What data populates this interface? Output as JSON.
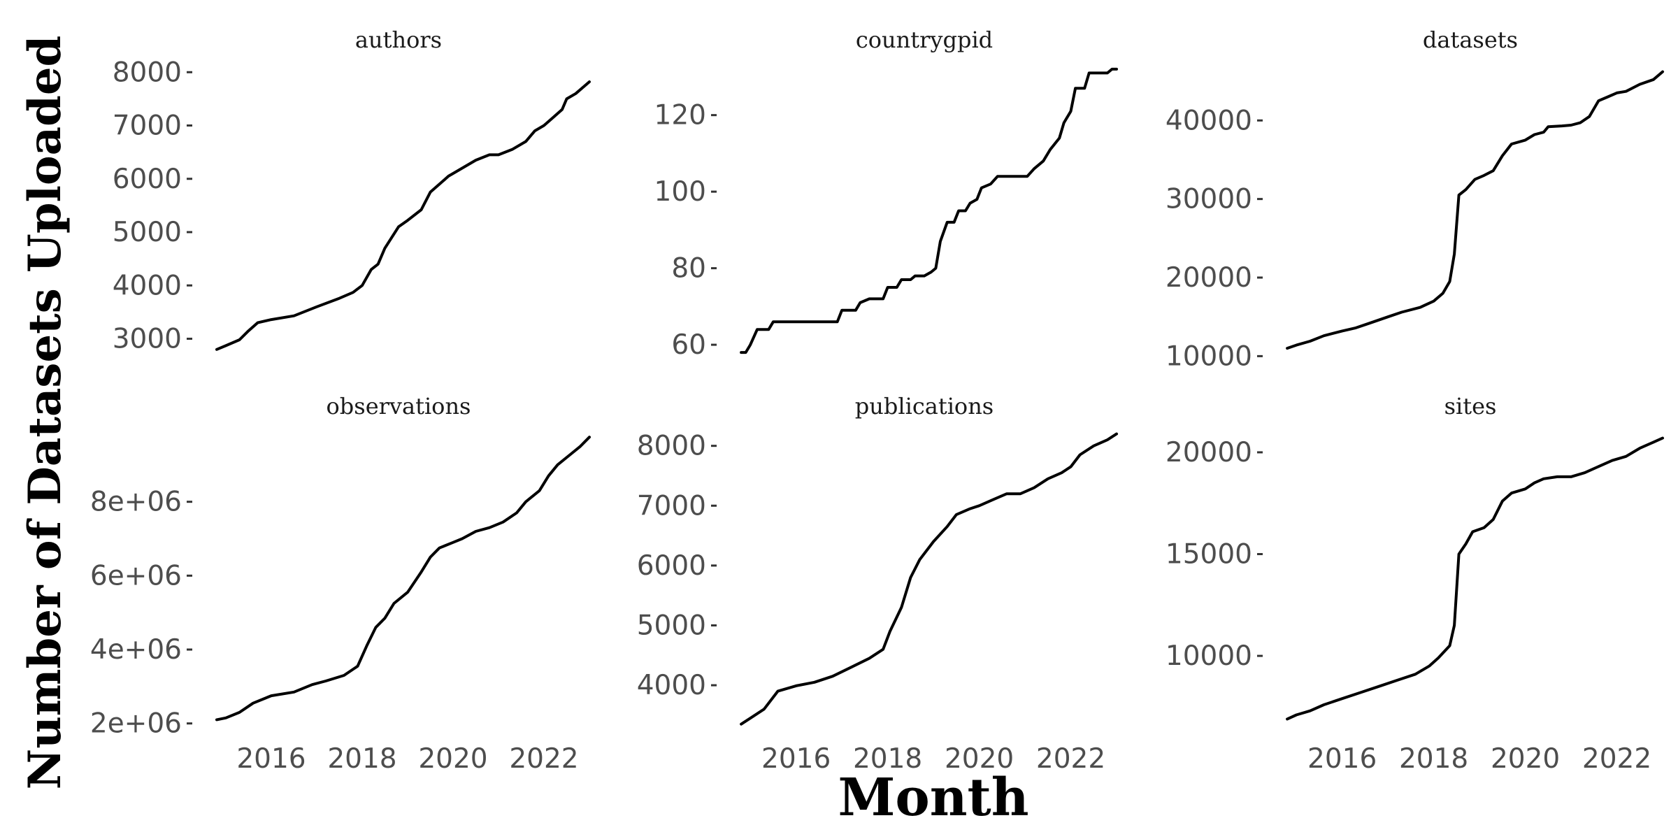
{
  "chart_data": {
    "type": "line",
    "xlabel": "Month",
    "ylabel": "Number of Datasets Uploaded",
    "grid": false,
    "legend": "none",
    "line_color": "#000000",
    "x_ticks": [
      2016,
      2018,
      2020,
      2022
    ],
    "xlim": [
      2014.6,
      2023.0
    ],
    "facets": [
      {
        "id": "authors",
        "title": "authors",
        "y_ticks": [
          3000,
          4000,
          5000,
          6000,
          7000,
          8000
        ],
        "y_tick_labels": [
          "3000",
          "4000",
          "5000",
          "6000",
          "7000",
          "8000"
        ],
        "ylim": [
          2600,
          8200
        ],
        "points": [
          [
            2014.8,
            2800
          ],
          [
            2015.0,
            2870
          ],
          [
            2015.3,
            2980
          ],
          [
            2015.5,
            3150
          ],
          [
            2015.7,
            3300
          ],
          [
            2016.0,
            3360
          ],
          [
            2016.5,
            3430
          ],
          [
            2017.0,
            3600
          ],
          [
            2017.5,
            3760
          ],
          [
            2017.8,
            3870
          ],
          [
            2018.0,
            4000
          ],
          [
            2018.2,
            4300
          ],
          [
            2018.35,
            4400
          ],
          [
            2018.5,
            4700
          ],
          [
            2018.8,
            5100
          ],
          [
            2019.0,
            5220
          ],
          [
            2019.3,
            5420
          ],
          [
            2019.5,
            5750
          ],
          [
            2019.7,
            5900
          ],
          [
            2019.9,
            6050
          ],
          [
            2020.0,
            6100
          ],
          [
            2020.5,
            6350
          ],
          [
            2020.8,
            6450
          ],
          [
            2021.0,
            6450
          ],
          [
            2021.3,
            6550
          ],
          [
            2021.6,
            6700
          ],
          [
            2021.8,
            6900
          ],
          [
            2022.0,
            7000
          ],
          [
            2022.2,
            7150
          ],
          [
            2022.4,
            7300
          ],
          [
            2022.5,
            7500
          ],
          [
            2022.7,
            7600
          ],
          [
            2023.0,
            7820
          ]
        ]
      },
      {
        "id": "countrygpid",
        "title": "countrygpid",
        "y_ticks": [
          60,
          80,
          100,
          120
        ],
        "y_tick_labels": [
          "60",
          "80",
          "100",
          "120"
        ],
        "ylim": [
          56,
          134
        ],
        "points": [
          [
            2014.8,
            58
          ],
          [
            2014.9,
            58
          ],
          [
            2015.0,
            60
          ],
          [
            2015.15,
            64
          ],
          [
            2015.4,
            64
          ],
          [
            2015.5,
            66
          ],
          [
            2016.5,
            66
          ],
          [
            2016.9,
            66
          ],
          [
            2017.0,
            69
          ],
          [
            2017.3,
            69
          ],
          [
            2017.4,
            71
          ],
          [
            2017.6,
            72
          ],
          [
            2017.9,
            72
          ],
          [
            2018.0,
            75
          ],
          [
            2018.2,
            75
          ],
          [
            2018.3,
            77
          ],
          [
            2018.5,
            77
          ],
          [
            2018.6,
            78
          ],
          [
            2018.8,
            78
          ],
          [
            2018.95,
            79
          ],
          [
            2019.05,
            80
          ],
          [
            2019.15,
            87
          ],
          [
            2019.3,
            92
          ],
          [
            2019.45,
            92
          ],
          [
            2019.55,
            95
          ],
          [
            2019.7,
            95
          ],
          [
            2019.8,
            97
          ],
          [
            2019.95,
            98
          ],
          [
            2020.05,
            101
          ],
          [
            2020.25,
            102
          ],
          [
            2020.4,
            104
          ],
          [
            2020.7,
            104
          ],
          [
            2020.9,
            104
          ],
          [
            2021.05,
            104
          ],
          [
            2021.2,
            106
          ],
          [
            2021.4,
            108
          ],
          [
            2021.55,
            111
          ],
          [
            2021.75,
            114
          ],
          [
            2021.85,
            118
          ],
          [
            2022.0,
            121
          ],
          [
            2022.1,
            127
          ],
          [
            2022.3,
            127
          ],
          [
            2022.4,
            131
          ],
          [
            2022.6,
            131
          ],
          [
            2022.8,
            131
          ],
          [
            2022.9,
            132
          ],
          [
            2023.0,
            132
          ]
        ]
      },
      {
        "id": "datasets",
        "title": "datasets",
        "y_ticks": [
          10000,
          20000,
          30000,
          40000
        ],
        "y_tick_labels": [
          "10000",
          "20000",
          "30000",
          "40000"
        ],
        "ylim": [
          9500,
          47500
        ],
        "points": [
          [
            2014.8,
            11000
          ],
          [
            2015.0,
            11400
          ],
          [
            2015.3,
            11900
          ],
          [
            2015.6,
            12600
          ],
          [
            2016.0,
            13200
          ],
          [
            2016.3,
            13600
          ],
          [
            2016.6,
            14200
          ],
          [
            2017.0,
            15000
          ],
          [
            2017.3,
            15600
          ],
          [
            2017.7,
            16200
          ],
          [
            2018.0,
            17000
          ],
          [
            2018.2,
            18000
          ],
          [
            2018.35,
            19500
          ],
          [
            2018.45,
            23000
          ],
          [
            2018.55,
            30500
          ],
          [
            2018.7,
            31200
          ],
          [
            2018.9,
            32500
          ],
          [
            2019.1,
            33000
          ],
          [
            2019.3,
            33600
          ],
          [
            2019.5,
            35500
          ],
          [
            2019.7,
            37000
          ],
          [
            2020.0,
            37500
          ],
          [
            2020.2,
            38200
          ],
          [
            2020.4,
            38500
          ],
          [
            2020.5,
            39200
          ],
          [
            2020.8,
            39300
          ],
          [
            2021.0,
            39400
          ],
          [
            2021.2,
            39700
          ],
          [
            2021.4,
            40500
          ],
          [
            2021.6,
            42500
          ],
          [
            2021.8,
            43000
          ],
          [
            2022.0,
            43500
          ],
          [
            2022.2,
            43700
          ],
          [
            2022.5,
            44600
          ],
          [
            2022.8,
            45200
          ],
          [
            2023.0,
            46200
          ]
        ]
      },
      {
        "id": "observations",
        "title": "observations",
        "y_ticks": [
          2000000,
          4000000,
          6000000,
          8000000
        ],
        "y_tick_labels": [
          "2e+06",
          "4e+06",
          "6e+06",
          "8e+06"
        ],
        "ylim": [
          1900000,
          10000000
        ],
        "points": [
          [
            2014.8,
            2100000
          ],
          [
            2015.0,
            2150000
          ],
          [
            2015.3,
            2300000
          ],
          [
            2015.6,
            2550000
          ],
          [
            2016.0,
            2750000
          ],
          [
            2016.5,
            2850000
          ],
          [
            2016.9,
            3050000
          ],
          [
            2017.2,
            3150000
          ],
          [
            2017.6,
            3300000
          ],
          [
            2017.9,
            3550000
          ],
          [
            2018.1,
            4100000
          ],
          [
            2018.3,
            4600000
          ],
          [
            2018.5,
            4850000
          ],
          [
            2018.7,
            5250000
          ],
          [
            2019.0,
            5550000
          ],
          [
            2019.3,
            6100000
          ],
          [
            2019.5,
            6500000
          ],
          [
            2019.7,
            6750000
          ],
          [
            2020.0,
            6900000
          ],
          [
            2020.2,
            7000000
          ],
          [
            2020.5,
            7200000
          ],
          [
            2020.8,
            7300000
          ],
          [
            2021.1,
            7450000
          ],
          [
            2021.4,
            7700000
          ],
          [
            2021.6,
            8000000
          ],
          [
            2021.9,
            8300000
          ],
          [
            2022.1,
            8700000
          ],
          [
            2022.3,
            9000000
          ],
          [
            2022.6,
            9300000
          ],
          [
            2022.8,
            9500000
          ],
          [
            2023.0,
            9750000
          ]
        ]
      },
      {
        "id": "publications",
        "title": "publications",
        "y_ticks": [
          4000,
          5000,
          6000,
          7000,
          8000
        ],
        "y_tick_labels": [
          "4000",
          "5000",
          "6000",
          "7000",
          "8000"
        ],
        "ylim": [
          3300,
          8300
        ],
        "points": [
          [
            2014.8,
            3350
          ],
          [
            2015.0,
            3450
          ],
          [
            2015.3,
            3600
          ],
          [
            2015.6,
            3900
          ],
          [
            2016.0,
            3990
          ],
          [
            2016.4,
            4050
          ],
          [
            2016.8,
            4150
          ],
          [
            2017.2,
            4300
          ],
          [
            2017.6,
            4450
          ],
          [
            2017.9,
            4600
          ],
          [
            2018.05,
            4900
          ],
          [
            2018.3,
            5300
          ],
          [
            2018.5,
            5800
          ],
          [
            2018.7,
            6100
          ],
          [
            2019.0,
            6400
          ],
          [
            2019.3,
            6650
          ],
          [
            2019.5,
            6850
          ],
          [
            2019.8,
            6950
          ],
          [
            2020.0,
            7000
          ],
          [
            2020.3,
            7100
          ],
          [
            2020.6,
            7200
          ],
          [
            2020.9,
            7200
          ],
          [
            2021.2,
            7300
          ],
          [
            2021.5,
            7450
          ],
          [
            2021.8,
            7550
          ],
          [
            2022.0,
            7650
          ],
          [
            2022.2,
            7850
          ],
          [
            2022.5,
            8000
          ],
          [
            2022.8,
            8100
          ],
          [
            2023.0,
            8200
          ]
        ]
      },
      {
        "id": "sites",
        "title": "sites",
        "y_ticks": [
          10000,
          15000,
          20000
        ],
        "y_tick_labels": [
          "10000",
          "15000",
          "20000"
        ],
        "ylim": [
          6500,
          21200
        ],
        "points": [
          [
            2014.8,
            6900
          ],
          [
            2015.0,
            7100
          ],
          [
            2015.3,
            7300
          ],
          [
            2015.6,
            7600
          ],
          [
            2016.0,
            7900
          ],
          [
            2016.4,
            8200
          ],
          [
            2016.8,
            8500
          ],
          [
            2017.2,
            8800
          ],
          [
            2017.6,
            9100
          ],
          [
            2017.9,
            9500
          ],
          [
            2018.1,
            9900
          ],
          [
            2018.35,
            10500
          ],
          [
            2018.45,
            11500
          ],
          [
            2018.55,
            15000
          ],
          [
            2018.7,
            15500
          ],
          [
            2018.85,
            16100
          ],
          [
            2019.1,
            16300
          ],
          [
            2019.3,
            16700
          ],
          [
            2019.5,
            17600
          ],
          [
            2019.7,
            18000
          ],
          [
            2020.0,
            18200
          ],
          [
            2020.2,
            18500
          ],
          [
            2020.4,
            18700
          ],
          [
            2020.7,
            18800
          ],
          [
            2021.0,
            18800
          ],
          [
            2021.3,
            19000
          ],
          [
            2021.6,
            19300
          ],
          [
            2021.9,
            19600
          ],
          [
            2022.2,
            19800
          ],
          [
            2022.5,
            20200
          ],
          [
            2022.8,
            20500
          ],
          [
            2023.0,
            20700
          ]
        ]
      }
    ]
  }
}
